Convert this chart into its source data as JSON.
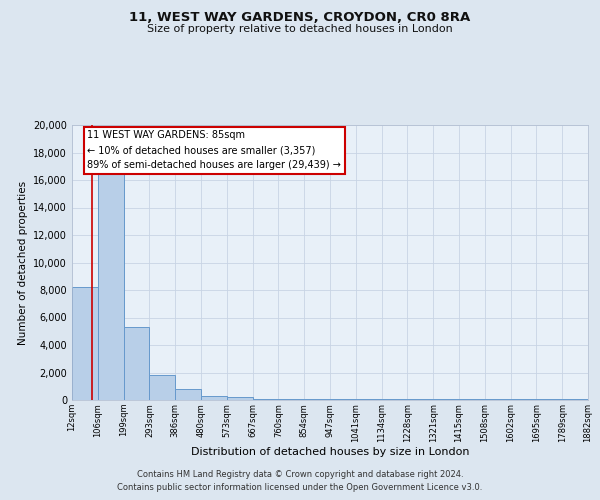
{
  "title": "11, WEST WAY GARDENS, CROYDON, CR0 8RA",
  "subtitle": "Size of property relative to detached houses in London",
  "xlabel": "Distribution of detached houses by size in London",
  "ylabel": "Number of detached properties",
  "bin_labels": [
    "12sqm",
    "106sqm",
    "199sqm",
    "293sqm",
    "386sqm",
    "480sqm",
    "573sqm",
    "667sqm",
    "760sqm",
    "854sqm",
    "947sqm",
    "1041sqm",
    "1134sqm",
    "1228sqm",
    "1321sqm",
    "1415sqm",
    "1508sqm",
    "1602sqm",
    "1695sqm",
    "1789sqm",
    "1882sqm"
  ],
  "bar_heights": [
    8200,
    16500,
    5300,
    1800,
    800,
    300,
    200,
    100,
    100,
    50,
    50,
    50,
    50,
    50,
    50,
    50,
    50,
    50,
    50,
    50
  ],
  "bar_color": "#b8cfe8",
  "bar_edge_color": "#6699cc",
  "annotation_title": "11 WEST WAY GARDENS: 85sqm",
  "annotation_line1": "← 10% of detached houses are smaller (3,357)",
  "annotation_line2": "89% of semi-detached houses are larger (29,439) →",
  "annotation_box_color": "#ffffff",
  "annotation_border_color": "#cc0000",
  "ylim": [
    0,
    20000
  ],
  "yticks": [
    0,
    2000,
    4000,
    6000,
    8000,
    10000,
    12000,
    14000,
    16000,
    18000,
    20000
  ],
  "footer1": "Contains HM Land Registry data © Crown copyright and database right 2024.",
  "footer2": "Contains public sector information licensed under the Open Government Licence v3.0.",
  "bg_color": "#dce6f0",
  "plot_bg_color": "#e8f0f8"
}
